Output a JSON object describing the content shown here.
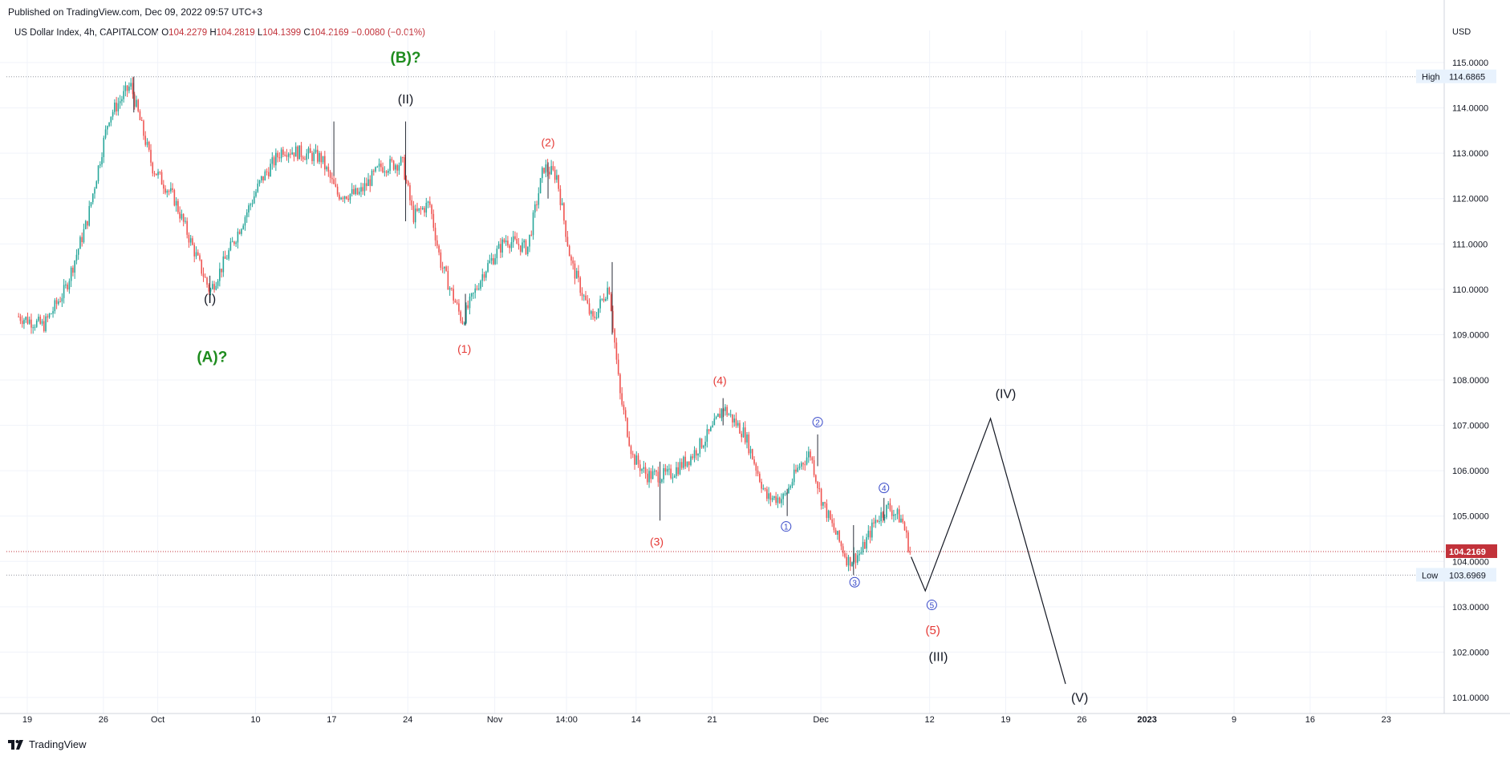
{
  "header": {
    "published": "Published on TradingView.com, Dec 09, 2022 09:57 UTC+3"
  },
  "legend": {
    "symbol": "US Dollar Index, 4h, CAPITALCOM",
    "o_label": "O",
    "o_value": "104.2279",
    "h_label": "H",
    "h_value": "104.2819",
    "l_label": "L",
    "l_value": "104.1399",
    "c_label": "C",
    "c_value": "104.2169",
    "change": "−0.0080 (−0.01%)"
  },
  "axis": {
    "currency": "USD"
  },
  "footer": {
    "brand": "TradingView",
    "logo_icon": "tradingview-logo-icon"
  },
  "colors": {
    "up": "#26a69a",
    "down": "#ef5350",
    "label_red": "#e53935",
    "label_green": "#1e8c1e",
    "label_blue": "#3547c8",
    "current": "#c2323a"
  },
  "chart_data": {
    "type": "candlestick",
    "timeframe": "4h",
    "y_ticks": [
      "115.0000",
      "114.0000",
      "113.0000",
      "112.0000",
      "111.0000",
      "110.0000",
      "109.0000",
      "108.0000",
      "107.0000",
      "106.0000",
      "105.0000",
      "104.0000",
      "103.0000",
      "102.0000",
      "101.0000"
    ],
    "ylim": [
      100.7,
      115.3
    ],
    "x_ticks": [
      {
        "label": "19",
        "day": 0
      },
      {
        "label": "26",
        "day": 7
      },
      {
        "label": "Oct",
        "day": 12
      },
      {
        "label": "10",
        "day": 21
      },
      {
        "label": "17",
        "day": 28
      },
      {
        "label": "24",
        "day": 35
      },
      {
        "label": "Nov",
        "day": 43
      },
      {
        "label": "14:00",
        "day": 49.6
      },
      {
        "label": "14",
        "day": 56
      },
      {
        "label": "21",
        "day": 63
      },
      {
        "label": "Dec",
        "day": 73
      },
      {
        "label": "12",
        "day": 83
      },
      {
        "label": "19",
        "day": 90
      },
      {
        "label": "26",
        "day": 97
      },
      {
        "label": "2023",
        "day": 103
      },
      {
        "label": "9",
        "day": 111
      },
      {
        "label": "16",
        "day": 118
      },
      {
        "label": "23",
        "day": 125
      }
    ],
    "price_anchors": [
      {
        "day": -0.8,
        "price": 109.4
      },
      {
        "day": 1.5,
        "price": 109.2
      },
      {
        "day": 3.5,
        "price": 110.0
      },
      {
        "day": 5.5,
        "price": 111.5
      },
      {
        "day": 7.5,
        "price": 113.8
      },
      {
        "day": 9.5,
        "price": 114.5
      },
      {
        "day": 11.5,
        "price": 112.7
      },
      {
        "day": 13.5,
        "price": 112.0
      },
      {
        "day": 16.8,
        "price": 109.95
      },
      {
        "day": 18.5,
        "price": 110.8
      },
      {
        "day": 21.5,
        "price": 112.4
      },
      {
        "day": 23.5,
        "price": 113.1
      },
      {
        "day": 27,
        "price": 112.9
      },
      {
        "day": 28.5,
        "price": 112.1
      },
      {
        "day": 30.5,
        "price": 112.1
      },
      {
        "day": 32.5,
        "price": 112.7
      },
      {
        "day": 34.5,
        "price": 112.8
      },
      {
        "day": 35.5,
        "price": 111.6
      },
      {
        "day": 37,
        "price": 111.9
      },
      {
        "day": 38,
        "price": 110.6
      },
      {
        "day": 40,
        "price": 109.3
      },
      {
        "day": 42,
        "price": 110.4
      },
      {
        "day": 44,
        "price": 111.1
      },
      {
        "day": 46,
        "price": 110.9
      },
      {
        "day": 47.5,
        "price": 112.7
      },
      {
        "day": 48.7,
        "price": 112.5
      },
      {
        "day": 50,
        "price": 110.6
      },
      {
        "day": 52,
        "price": 109.3
      },
      {
        "day": 53.5,
        "price": 110.1
      },
      {
        "day": 54.5,
        "price": 107.7
      },
      {
        "day": 55.7,
        "price": 106.3
      },
      {
        "day": 57,
        "price": 105.9
      },
      {
        "day": 59,
        "price": 105.9
      },
      {
        "day": 61,
        "price": 106.3
      },
      {
        "day": 63,
        "price": 106.9
      },
      {
        "day": 64,
        "price": 107.4
      },
      {
        "day": 66,
        "price": 106.8
      },
      {
        "day": 68,
        "price": 105.4
      },
      {
        "day": 69.6,
        "price": 105.4
      },
      {
        "day": 71,
        "price": 106.1
      },
      {
        "day": 72,
        "price": 106.4
      },
      {
        "day": 73,
        "price": 105.4
      },
      {
        "day": 74,
        "price": 104.8
      },
      {
        "day": 75.5,
        "price": 104.0
      },
      {
        "day": 76.7,
        "price": 104.2
      },
      {
        "day": 78,
        "price": 104.9
      },
      {
        "day": 79.2,
        "price": 105.2
      },
      {
        "day": 80.5,
        "price": 104.9
      },
      {
        "day": 81.2,
        "price": 104.2
      }
    ],
    "key_candles": [
      {
        "day": 9.8,
        "high": 114.69,
        "low": 113.9
      },
      {
        "day": 16.8,
        "high": 110.3,
        "low": 109.88
      },
      {
        "day": 28.2,
        "high": 113.7,
        "low": 112.5
      },
      {
        "day": 34.8,
        "high": 113.7,
        "low": 111.5
      },
      {
        "day": 40.3,
        "high": 109.9,
        "low": 109.2
      },
      {
        "day": 47.9,
        "high": 112.8,
        "low": 112.0
      },
      {
        "day": 53.8,
        "high": 110.6,
        "low": 109.0
      },
      {
        "day": 58.2,
        "high": 106.2,
        "low": 104.9
      },
      {
        "day": 64.0,
        "high": 107.6,
        "low": 107.0
      },
      {
        "day": 69.9,
        "high": 105.6,
        "low": 105.0
      },
      {
        "day": 72.7,
        "high": 106.8,
        "low": 106.1
      },
      {
        "day": 76.0,
        "high": 104.8,
        "low": 103.7
      },
      {
        "day": 78.8,
        "high": 105.4,
        "low": 104.9
      }
    ],
    "projection_path": [
      {
        "day": 81.3,
        "price": 104.1
      },
      {
        "day": 82.6,
        "price": 103.35
      },
      {
        "day": 88.6,
        "price": 107.15
      },
      {
        "day": 95.5,
        "price": 101.3
      }
    ],
    "levels": {
      "high": {
        "label": "High",
        "value": 114.6865,
        "text": "114.6865"
      },
      "low": {
        "label": "Low",
        "value": 103.6969,
        "text": "103.6969"
      },
      "current": {
        "value": 104.2169,
        "text": "104.2169"
      }
    },
    "wave_labels": [
      {
        "text": "(B)?",
        "day": 34.8,
        "price": 115.0,
        "color": "green",
        "size": 19
      },
      {
        "text": "(II)",
        "day": 34.8,
        "price": 114.1,
        "color": "black",
        "size": 16
      },
      {
        "text": "(I)",
        "day": 16.8,
        "price": 109.7,
        "color": "black",
        "size": 16
      },
      {
        "text": "(A)?",
        "day": 17.0,
        "price": 108.4,
        "color": "green",
        "size": 19
      },
      {
        "text": "(2)",
        "day": 47.9,
        "price": 113.15,
        "color": "red",
        "size": 14
      },
      {
        "text": "(1)",
        "day": 40.2,
        "price": 108.6,
        "color": "red",
        "size": 14
      },
      {
        "text": "(4)",
        "day": 63.7,
        "price": 107.9,
        "color": "red",
        "size": 14
      },
      {
        "text": "(3)",
        "day": 57.9,
        "price": 104.35,
        "color": "red",
        "size": 14
      },
      {
        "text": "2",
        "day": 72.7,
        "price": 107.0,
        "color": "blue",
        "size": 10,
        "circled": true
      },
      {
        "text": "1",
        "day": 69.8,
        "price": 104.7,
        "color": "blue",
        "size": 10,
        "circled": true
      },
      {
        "text": "4",
        "day": 78.8,
        "price": 105.55,
        "color": "blue",
        "size": 10,
        "circled": true
      },
      {
        "text": "3",
        "day": 76.1,
        "price": 103.47,
        "color": "blue",
        "size": 10,
        "circled": true
      },
      {
        "text": "5",
        "day": 83.2,
        "price": 102.97,
        "color": "blue",
        "size": 10,
        "circled": true
      },
      {
        "text": "(5)",
        "day": 83.3,
        "price": 102.4,
        "color": "red",
        "size": 15
      },
      {
        "text": "(III)",
        "day": 83.8,
        "price": 101.8,
        "color": "black",
        "size": 16
      },
      {
        "text": "(IV)",
        "day": 90.0,
        "price": 107.6,
        "color": "black",
        "size": 16
      },
      {
        "text": "(V)",
        "day": 96.8,
        "price": 100.9,
        "color": "black",
        "size": 16
      }
    ]
  }
}
